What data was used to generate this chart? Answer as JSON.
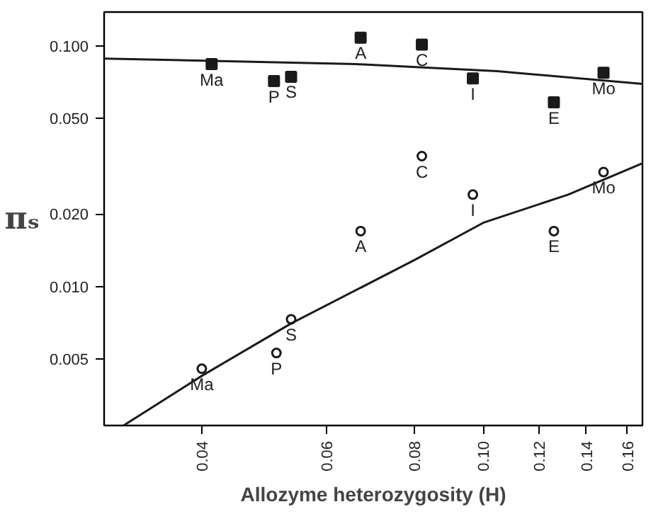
{
  "chart_data": {
    "type": "scatter",
    "xlabel": "Allozyme heterozygosity (H)",
    "ylabel": "πₛ",
    "log": "xy",
    "grid": false,
    "xlim": [
      0.0291,
      0.168
    ],
    "ylim": [
      0.00265,
      0.138
    ],
    "xticks": [
      0.04,
      0.06,
      0.08,
      {
        "value": 0.1,
        "label": "0.10"
      },
      0.12,
      0.14,
      0.16
    ],
    "yticks": [
      {
        "value": 0.005,
        "label": "0.005"
      },
      {
        "value": 0.01,
        "label": "0.010"
      },
      {
        "value": 0.02,
        "label": "0.020"
      },
      {
        "value": 0.05,
        "label": "0.050"
      },
      {
        "value": 0.1,
        "label": "0.100"
      }
    ],
    "series": [
      {
        "marker": "square",
        "color": "#1a1a1a",
        "x": [
          0.0413,
          0.0506,
          0.0535,
          0.0671,
          0.0819,
          0.0967,
          0.1259,
          0.148
        ],
        "values": [
          0.0839,
          0.0713,
          0.0743,
          0.108,
          0.101,
          0.0732,
          0.0582,
          0.0773
        ]
      },
      {
        "marker": "circle",
        "color": "#1a1a1a",
        "x": [
          0.04,
          0.051,
          0.0535,
          0.0671,
          0.0819,
          0.0967,
          0.1259,
          0.148
        ],
        "values": [
          0.00456,
          0.0053,
          0.00732,
          0.017,
          0.0348,
          0.0241,
          0.017,
          0.0299
        ]
      },
      {
        "type": "line",
        "marker": "none",
        "color": "#1a1a1a",
        "x": [
          0.0291,
          0.066,
          0.1046,
          0.168
        ],
        "values": [
          0.0885,
          0.0839,
          0.0784,
          0.0694
        ]
      },
      {
        "type": "line",
        "marker": "none",
        "color": "#1a1a1a",
        "x": [
          0.031,
          0.04,
          0.0535,
          0.08,
          0.1,
          0.1319,
          0.168
        ],
        "values": [
          0.00265,
          0.00426,
          0.00703,
          0.0129,
          0.0184,
          0.0241,
          0.0325
        ]
      }
    ],
    "annotations": [
      {
        "text": "Ma",
        "x": 0.0413,
        "y": 0.0839
      },
      {
        "text": "P",
        "x": 0.0506,
        "y": 0.0713
      },
      {
        "text": "S",
        "x": 0.0535,
        "y": 0.0743
      },
      {
        "text": "A",
        "x": 0.0671,
        "y": 0.108
      },
      {
        "text": "C",
        "x": 0.0819,
        "y": 0.101
      },
      {
        "text": "I",
        "x": 0.0967,
        "y": 0.0732
      },
      {
        "text": "E",
        "x": 0.1259,
        "y": 0.0582
      },
      {
        "text": "Mo",
        "x": 0.148,
        "y": 0.0773
      },
      {
        "text": "Ma",
        "x": 0.04,
        "y": 0.00456
      },
      {
        "text": "P",
        "x": 0.051,
        "y": 0.0053
      },
      {
        "text": "S",
        "x": 0.0535,
        "y": 0.00732
      },
      {
        "text": "A",
        "x": 0.0671,
        "y": 0.017
      },
      {
        "text": "C",
        "x": 0.0819,
        "y": 0.0348
      },
      {
        "text": "I",
        "x": 0.0967,
        "y": 0.0241
      },
      {
        "text": "E",
        "x": 0.1259,
        "y": 0.017
      },
      {
        "text": "Mo",
        "x": 0.148,
        "y": 0.0299
      }
    ]
  }
}
